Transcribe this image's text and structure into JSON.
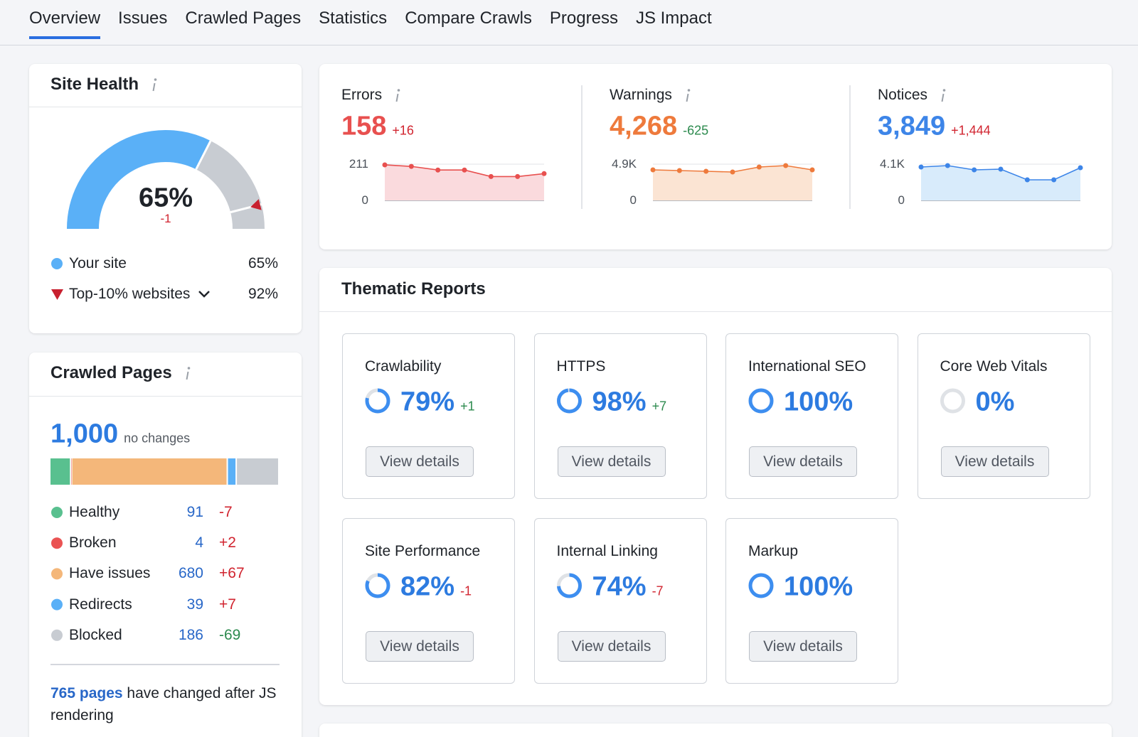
{
  "tabs": [
    "Overview",
    "Issues",
    "Crawled Pages",
    "Statistics",
    "Compare Crawls",
    "Progress",
    "JS Impact"
  ],
  "site_health": {
    "title": "Site Health",
    "score": "65%",
    "change": "-1",
    "legend": [
      {
        "label": "Your site",
        "value": "65%",
        "color": "#5ab0f7"
      },
      {
        "label": "Top-10% websites",
        "value": "92%",
        "color": "#c8202f"
      }
    ]
  },
  "crawled_pages": {
    "title": "Crawled Pages",
    "total": "1,000",
    "note": "no changes",
    "rows": [
      {
        "label": "Healthy",
        "value": 91,
        "change": "-7",
        "color": "#59c08f",
        "change_color": "#d1242f"
      },
      {
        "label": "Broken",
        "value": 4,
        "change": "+2",
        "color": "#ea5353",
        "change_color": "#d1242f"
      },
      {
        "label": "Have issues",
        "value": 680,
        "change": "+67",
        "color": "#f4b77a",
        "change_color": "#d1242f"
      },
      {
        "label": "Redirects",
        "value": 39,
        "change": "+7",
        "color": "#5ab0f7",
        "change_color": "#d1242f"
      },
      {
        "label": "Blocked",
        "value": 186,
        "change": "-69",
        "color": "#c8ccd2",
        "change_color": "#2c8a4e"
      }
    ],
    "footer_link": "765 pages",
    "footer_text": "have changed after JS rendering"
  },
  "issues": [
    {
      "label": "Errors",
      "value": "158",
      "change": "+16",
      "color": "#e8504f",
      "fill": "#fadadd",
      "change_color": "#d1242f",
      "chart_data": {
        "type": "area",
        "values": [
          207,
          198,
          177,
          177,
          139,
          139,
          156
        ],
        "ylim": [
          0,
          211
        ],
        "yticks": [
          211,
          0
        ]
      }
    },
    {
      "label": "Warnings",
      "value": "4,268",
      "change": "-625",
      "color": "#ee7a3c",
      "fill": "#fbe4d3",
      "change_color": "#2c8a4e",
      "chart_data": {
        "type": "area",
        "values": [
          4131,
          4035,
          3939,
          3843,
          4516,
          4708,
          4131
        ],
        "ylim": [
          0,
          4900
        ],
        "yticks": [
          {
            "value": 4900,
            "label": "4.9K"
          },
          0
        ]
      }
    },
    {
      "label": "Notices",
      "value": "3,849",
      "change": "+1,444",
      "color": "#3d85e8",
      "fill": "#d8ebfb",
      "change_color": "#d1242f",
      "chart_data": {
        "type": "area",
        "values": [
          3778,
          3939,
          3457,
          3537,
          2331,
          2331,
          3698
        ],
        "ylim": [
          0,
          4100
        ],
        "yticks": [
          {
            "value": 4100,
            "label": "4.1K"
          },
          0
        ]
      }
    }
  ],
  "thematic": {
    "title": "Thematic Reports",
    "cards": [
      {
        "name": "Crawlability",
        "score": "79%",
        "change": "+1",
        "change_color": "#2c8a4e",
        "button": "View details"
      },
      {
        "name": "HTTPS",
        "score": "98%",
        "change": "+7",
        "change_color": "#2c8a4e",
        "button": "View details"
      },
      {
        "name": "International SEO",
        "score": "100%",
        "button": "View details"
      },
      {
        "name": "Core Web Vitals",
        "score": "0%",
        "button": "View details"
      },
      {
        "name": "Site Performance",
        "score": "82%",
        "change": "-1",
        "change_color": "#d1242f",
        "button": "View details"
      },
      {
        "name": "Internal Linking",
        "score": "74%",
        "change": "-7",
        "change_color": "#d1242f",
        "button": "View details"
      },
      {
        "name": "Markup",
        "score": "100%",
        "button": "View details"
      }
    ]
  }
}
